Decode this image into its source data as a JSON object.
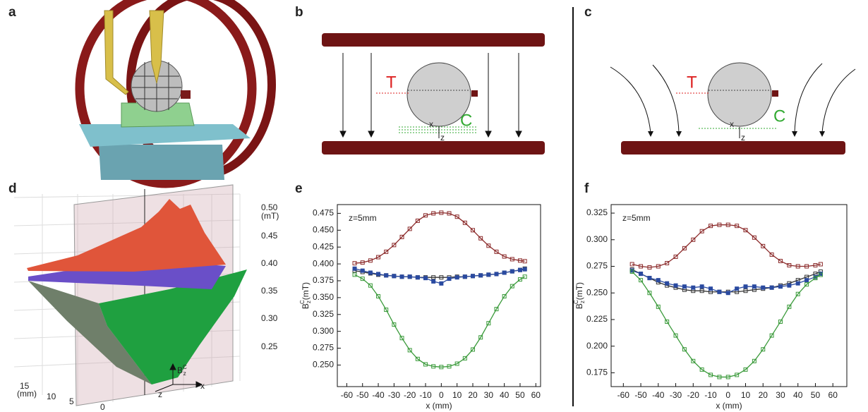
{
  "panel_labels": [
    "a",
    "b",
    "c",
    "d",
    "e",
    "f"
  ],
  "diagram_b": {
    "labels": [
      "T",
      "C",
      "x",
      "z"
    ]
  },
  "diagram_c": {
    "labels": [
      "T",
      "C",
      "x",
      "z"
    ]
  },
  "surface_d": {
    "value_ticks": [
      "0.50",
      "0.45",
      "0.40",
      "0.35",
      "0.30",
      "0.25"
    ],
    "value_unit": "(mT)",
    "depth_ticks": [
      "15",
      "10",
      "5"
    ],
    "depth_unit": "(mm)",
    "x_tick": "0",
    "field_label": {
      "symbol": "B",
      "sup": "C",
      "sub": "z"
    },
    "axis_labels": [
      "z",
      "x"
    ]
  },
  "chart_data": [
    {
      "type": "line",
      "annotation": "z=5mm",
      "xlabel": "x (mm)",
      "ylabel": {
        "symbol": "B",
        "sup": "C",
        "sub": "z",
        "unit": "(mT)"
      },
      "x": [
        -55,
        -50,
        -45,
        -40,
        -35,
        -30,
        -25,
        -20,
        -15,
        -10,
        -5,
        0,
        5,
        10,
        15,
        20,
        25,
        30,
        35,
        40,
        45,
        50,
        53
      ],
      "series": [
        {
          "color": "#8b2a2a",
          "values": [
            0.401,
            0.402,
            0.405,
            0.41,
            0.418,
            0.428,
            0.44,
            0.452,
            0.464,
            0.472,
            0.475,
            0.476,
            0.475,
            0.47,
            0.461,
            0.45,
            0.438,
            0.427,
            0.418,
            0.411,
            0.407,
            0.405,
            0.404
          ]
        },
        {
          "color": "#333333",
          "values": [
            0.39,
            0.388,
            0.386,
            0.384,
            0.383,
            0.382,
            0.381,
            0.381,
            0.38,
            0.38,
            0.38,
            0.38,
            0.38,
            0.381,
            0.381,
            0.382,
            0.383,
            0.384,
            0.385,
            0.387,
            0.389,
            0.391,
            0.393
          ]
        },
        {
          "color": "#2a4aa0",
          "values": [
            0.393,
            0.39,
            0.387,
            0.385,
            0.383,
            0.382,
            0.381,
            0.381,
            0.38,
            0.379,
            0.374,
            0.371,
            0.378,
            0.38,
            0.381,
            0.382,
            0.383,
            0.384,
            0.385,
            0.387,
            0.389,
            0.391,
            0.392
          ]
        },
        {
          "color": "#3a9a3a",
          "values": [
            0.384,
            0.378,
            0.368,
            0.352,
            0.332,
            0.31,
            0.29,
            0.272,
            0.259,
            0.251,
            0.248,
            0.247,
            0.248,
            0.252,
            0.26,
            0.273,
            0.291,
            0.312,
            0.333,
            0.352,
            0.367,
            0.377,
            0.381
          ]
        }
      ],
      "xlim": [
        -66,
        63
      ],
      "xticks": [
        -60,
        -50,
        -40,
        -30,
        -20,
        -10,
        0,
        10,
        20,
        30,
        40,
        50,
        60
      ],
      "ylim": [
        0.218,
        0.488
      ],
      "yticks": [
        {
          "value": 0.25,
          "label": "0.250"
        },
        0.275,
        {
          "value": 0.3,
          "label": "0.300"
        },
        0.325,
        {
          "value": 0.35,
          "label": "0.350"
        },
        0.375,
        {
          "value": 0.4,
          "label": "0.400"
        },
        0.425,
        {
          "value": 0.45,
          "label": "0.450"
        },
        0.475
      ]
    },
    {
      "type": "line",
      "annotation": "z=5mm",
      "xlabel": "x (mm)",
      "ylabel": {
        "symbol": "B",
        "sup": "C",
        "sub": "z",
        "unit": "(mT)"
      },
      "x": [
        -55,
        -50,
        -45,
        -40,
        -35,
        -30,
        -25,
        -20,
        -15,
        -10,
        -5,
        0,
        5,
        10,
        15,
        20,
        25,
        30,
        35,
        40,
        45,
        50,
        53
      ],
      "series": [
        {
          "color": "#8b2a2a",
          "values": [
            0.277,
            0.275,
            0.274,
            0.275,
            0.278,
            0.284,
            0.292,
            0.3,
            0.308,
            0.313,
            0.314,
            0.314,
            0.313,
            0.309,
            0.302,
            0.294,
            0.286,
            0.28,
            0.276,
            0.275,
            0.275,
            0.276,
            0.277
          ]
        },
        {
          "color": "#333333",
          "values": [
            0.272,
            0.268,
            0.264,
            0.26,
            0.257,
            0.255,
            0.253,
            0.252,
            0.252,
            0.251,
            0.251,
            0.251,
            0.251,
            0.252,
            0.253,
            0.254,
            0.255,
            0.257,
            0.259,
            0.262,
            0.265,
            0.268,
            0.27
          ]
        },
        {
          "color": "#2a4aa0",
          "values": [
            0.271,
            0.268,
            0.264,
            0.262,
            0.259,
            0.257,
            0.256,
            0.255,
            0.256,
            0.254,
            0.251,
            0.25,
            0.254,
            0.256,
            0.256,
            0.255,
            0.255,
            0.256,
            0.257,
            0.259,
            0.262,
            0.265,
            0.268
          ]
        },
        {
          "color": "#3a9a3a",
          "values": [
            0.27,
            0.262,
            0.25,
            0.237,
            0.223,
            0.21,
            0.197,
            0.186,
            0.178,
            0.173,
            0.171,
            0.171,
            0.173,
            0.178,
            0.186,
            0.197,
            0.21,
            0.223,
            0.237,
            0.249,
            0.258,
            0.264,
            0.267
          ]
        }
      ],
      "xlim": [
        -67,
        68
      ],
      "xticks": [
        -60,
        -50,
        -40,
        -30,
        -20,
        -10,
        0,
        10,
        20,
        30,
        40,
        50,
        60
      ],
      "ylim": [
        0.162,
        0.333
      ],
      "yticks": [
        0.175,
        {
          "value": 0.2,
          "label": "0.200"
        },
        0.225,
        {
          "value": 0.25,
          "label": "0.250"
        },
        0.275,
        {
          "value": 0.3,
          "label": "0.300"
        },
        0.325
      ]
    }
  ]
}
